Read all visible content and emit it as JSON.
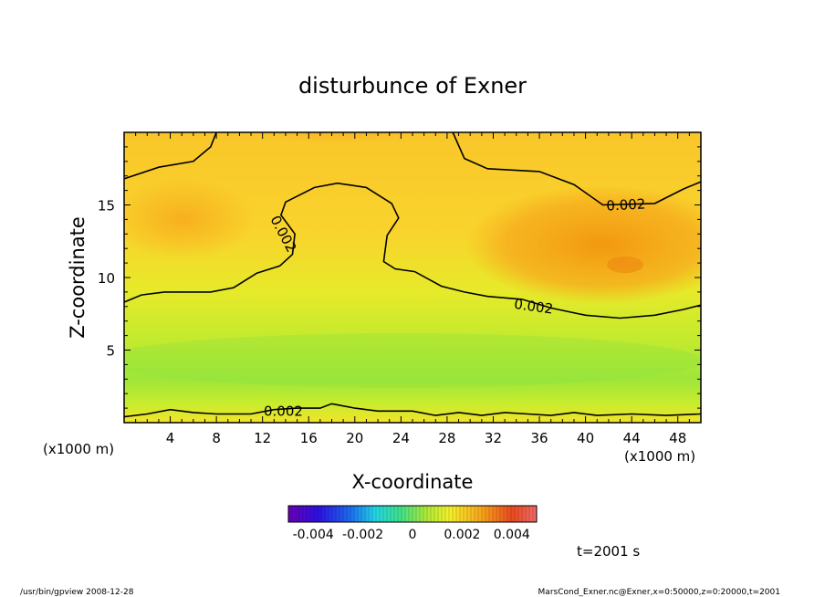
{
  "chart_data": {
    "type": "heatmap",
    "title": "disturbunce of Exner",
    "xlabel": "X-coordinate",
    "ylabel": "Z-coordinate",
    "x_unit_left": "(x1000 m)",
    "x_unit_right": "(x1000 m)",
    "xlim": [
      0,
      50
    ],
    "ylim": [
      0,
      20
    ],
    "x_ticks": [
      4,
      8,
      12,
      16,
      20,
      24,
      28,
      32,
      36,
      40,
      44,
      48
    ],
    "y_ticks": [
      5,
      10,
      15
    ],
    "colorbar": {
      "min": -0.005,
      "max": 0.005,
      "tick_labels": [
        "-0.004",
        "-0.002",
        "0",
        "0.002",
        "0.004"
      ],
      "tick_values": [
        -0.004,
        -0.002,
        0,
        0.002,
        0.004
      ]
    },
    "contour_labels": [
      {
        "text": "0.002",
        "x": 43.5,
        "z": 15.0,
        "angle": -3
      },
      {
        "text": "0.002",
        "x": 13.8,
        "z": 13.0,
        "angle": 62
      },
      {
        "text": "0.002",
        "x": 35.5,
        "z": 8.0,
        "angle": 8
      },
      {
        "text": "0.002",
        "x": 13.8,
        "z": 0.8,
        "angle": 0
      }
    ],
    "contour_lines": [
      {
        "level": 0.002,
        "points": [
          [
            0,
            16.8
          ],
          [
            3,
            17.6
          ],
          [
            6,
            18.0
          ],
          [
            7.5,
            19.0
          ],
          [
            8,
            20.0
          ]
        ]
      },
      {
        "level": 0.002,
        "points": [
          [
            28.5,
            20.0
          ],
          [
            29.5,
            18.2
          ],
          [
            31.5,
            17.5
          ],
          [
            36,
            17.3
          ],
          [
            39,
            16.4
          ],
          [
            41.5,
            15.0
          ],
          [
            46,
            15.1
          ],
          [
            48.5,
            16.1
          ],
          [
            50,
            16.6
          ]
        ]
      },
      {
        "level": 0.002,
        "points": [
          [
            0,
            8.3
          ],
          [
            1.5,
            8.8
          ],
          [
            3.5,
            9.0
          ],
          [
            7.5,
            9.0
          ],
          [
            9.5,
            9.3
          ],
          [
            11.5,
            10.3
          ],
          [
            13.5,
            10.8
          ],
          [
            14.6,
            11.6
          ],
          [
            14.8,
            13.0
          ],
          [
            13.6,
            14.3
          ],
          [
            14.0,
            15.2
          ],
          [
            16.5,
            16.2
          ],
          [
            18.5,
            16.5
          ],
          [
            21.0,
            16.2
          ],
          [
            23.2,
            15.1
          ],
          [
            23.8,
            14.1
          ],
          [
            22.8,
            12.9
          ],
          [
            22.5,
            11.1
          ],
          [
            23.5,
            10.6
          ],
          [
            25.2,
            10.4
          ],
          [
            27.5,
            9.4
          ],
          [
            29.5,
            9.0
          ],
          [
            31.5,
            8.7
          ],
          [
            34.5,
            8.5
          ],
          [
            37,
            7.9
          ],
          [
            40,
            7.4
          ],
          [
            43,
            7.2
          ],
          [
            46,
            7.4
          ],
          [
            48.5,
            7.8
          ],
          [
            50,
            8.1
          ]
        ]
      },
      {
        "level": 0.002,
        "points": [
          [
            0,
            0.4
          ],
          [
            2,
            0.6
          ],
          [
            4,
            0.9
          ],
          [
            6,
            0.7
          ],
          [
            8,
            0.6
          ],
          [
            11,
            0.6
          ],
          [
            13,
            0.9
          ],
          [
            15,
            1.0
          ],
          [
            17,
            1.0
          ],
          [
            18,
            1.3
          ],
          [
            20,
            1.0
          ],
          [
            22,
            0.8
          ],
          [
            25,
            0.8
          ],
          [
            27,
            0.5
          ],
          [
            29,
            0.7
          ],
          [
            31,
            0.5
          ],
          [
            33,
            0.7
          ],
          [
            35,
            0.6
          ],
          [
            37,
            0.5
          ],
          [
            39,
            0.7
          ],
          [
            41,
            0.5
          ],
          [
            44,
            0.6
          ],
          [
            47,
            0.5
          ],
          [
            50,
            0.6
          ]
        ]
      }
    ],
    "time_label": "t=2001 s"
  },
  "footer": {
    "left": "/usr/bin/gpview   2008-12-28",
    "right": "MarsCond_Exner.nc@Exner,x=0:50000,z=0:20000,t=2001"
  }
}
